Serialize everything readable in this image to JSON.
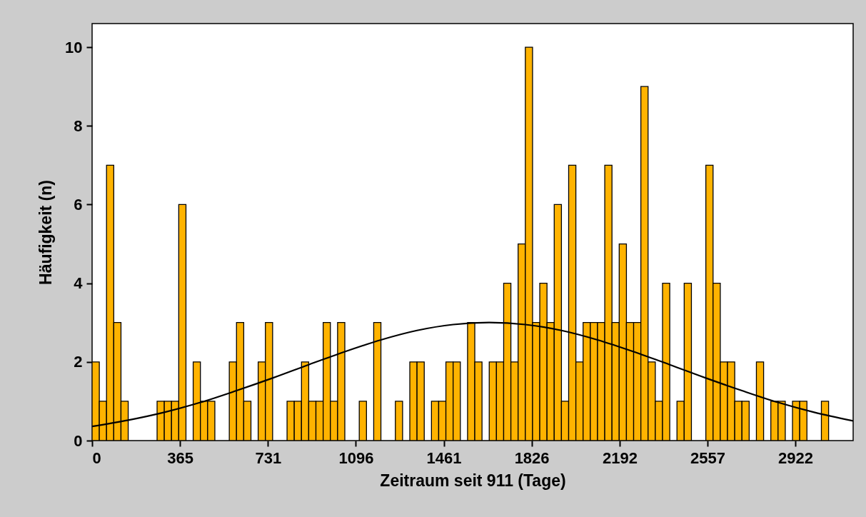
{
  "chart_data": {
    "type": "histogram",
    "xlabel": "Zeitraum seit 911 (Tage)",
    "ylabel": "Häufigkeit (n)",
    "bins": [
      0,
      30,
      60,
      90,
      120,
      150,
      180,
      210,
      240,
      270,
      300,
      330,
      360,
      390,
      420,
      450,
      480,
      510,
      540,
      570,
      600,
      630,
      660,
      690,
      720,
      750,
      780,
      810,
      840,
      870,
      900,
      930,
      960,
      990,
      1020,
      1050,
      1080,
      1110,
      1140,
      1170,
      1200,
      1230,
      1260,
      1290,
      1320,
      1350,
      1380,
      1410,
      1440,
      1470,
      1500,
      1530,
      1560,
      1590,
      1620,
      1650,
      1680,
      1710,
      1740,
      1770,
      1800,
      1830,
      1860,
      1890,
      1920,
      1950,
      1980,
      2010,
      2040,
      2070,
      2100,
      2130,
      2160,
      2190,
      2220,
      2250,
      2280,
      2310,
      2340,
      2370,
      2400,
      2430,
      2460,
      2490,
      2520,
      2550,
      2580,
      2610,
      2640,
      2670,
      2700,
      2730,
      2760,
      2790,
      2820,
      2850,
      2880,
      2910,
      2940,
      2970,
      3000,
      3030,
      3060
    ],
    "series": [
      {
        "color": "#ffb300",
        "values": [
          2,
          1,
          7,
          3,
          1,
          0,
          0,
          0,
          0,
          1,
          1,
          1,
          6,
          0,
          2,
          1,
          1,
          0,
          0,
          2,
          3,
          1,
          0,
          2,
          3,
          0,
          0,
          1,
          1,
          2,
          1,
          1,
          3,
          1,
          3,
          0,
          0,
          1,
          0,
          3,
          0,
          0,
          1,
          0,
          2,
          2,
          0,
          1,
          1,
          2,
          2,
          0,
          3,
          2,
          0,
          2,
          2,
          4,
          2,
          5,
          10,
          3,
          4,
          3,
          6,
          1,
          7,
          2,
          3,
          3,
          3,
          7,
          3,
          5,
          3,
          3,
          9,
          2,
          1,
          4,
          0,
          1,
          4,
          0,
          0,
          7,
          4,
          2,
          2,
          1,
          1,
          0,
          2,
          0,
          1,
          1,
          0,
          1,
          1,
          0,
          0,
          1
        ]
      },
      {
        "type": "line",
        "color": "#000000",
        "x": [
          0,
          150,
          300,
          450,
          600,
          750,
          900,
          1050,
          1200,
          1350,
          1500,
          1650,
          1800,
          1950,
          2100,
          2250,
          2400,
          2550,
          2700,
          2850,
          3000,
          3162
        ],
        "values": [
          0.36,
          0.52,
          0.72,
          0.97,
          1.27,
          1.59,
          1.93,
          2.26,
          2.56,
          2.8,
          2.95,
          3.0,
          2.95,
          2.8,
          2.56,
          2.26,
          1.93,
          1.59,
          1.27,
          0.97,
          0.72,
          0.5
        ]
      }
    ],
    "xlim": [
      0,
      3162
    ],
    "xticks": [
      0,
      365,
      731,
      1096,
      1461,
      1826,
      2192,
      2557,
      2922
    ],
    "ylim": [
      0,
      10.6
    ],
    "yticks": [
      0,
      2,
      4,
      6,
      8,
      10
    ],
    "grid": false
  }
}
